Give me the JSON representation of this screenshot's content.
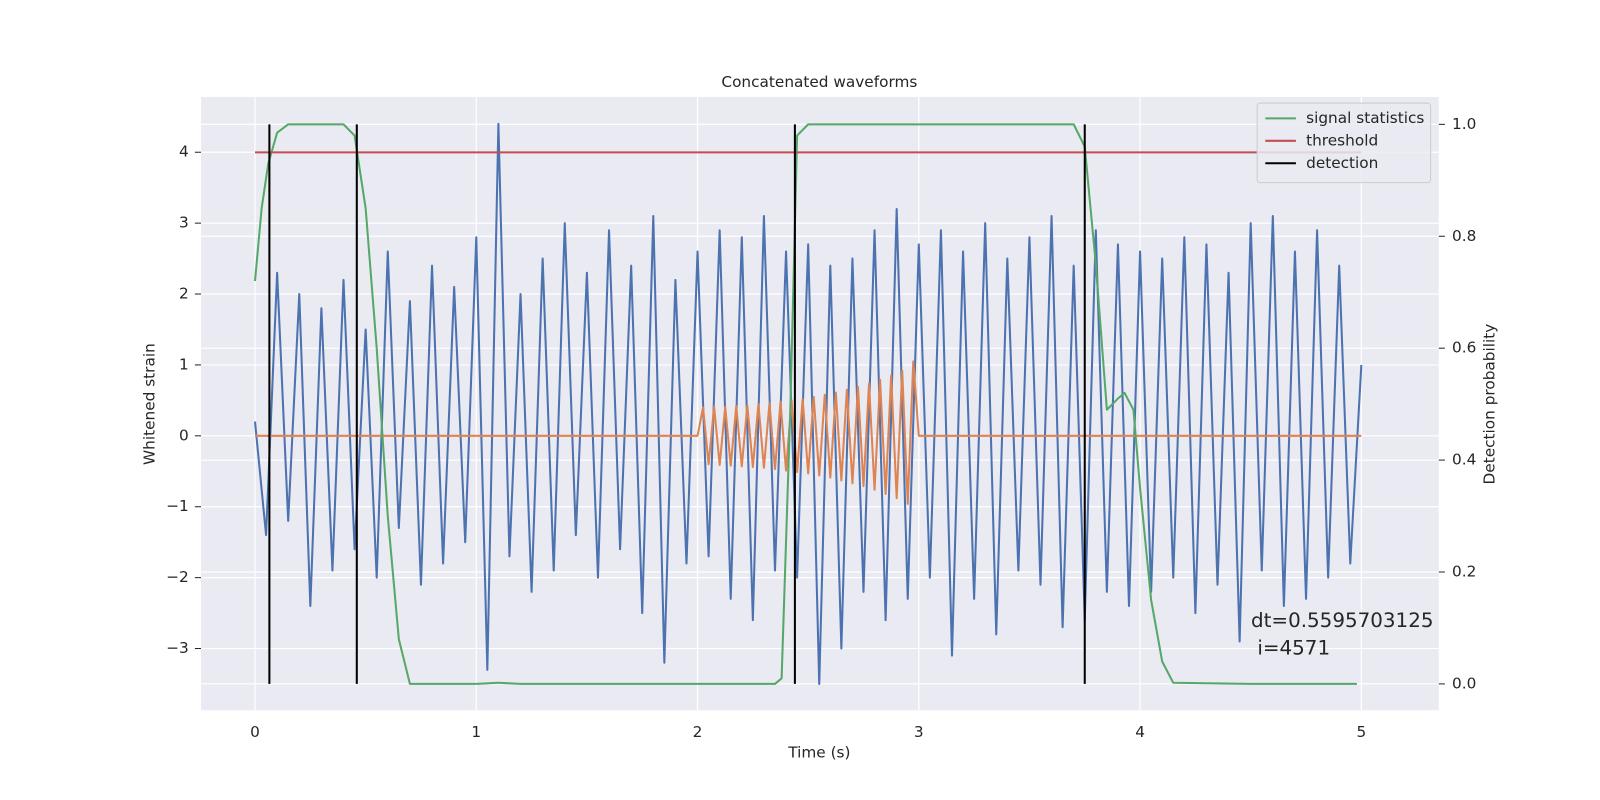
{
  "chart_data": {
    "type": "line",
    "title": "Concatenated waveforms",
    "xlabel": "Time (s)",
    "ylabel": "Whitened strain",
    "y2label": "Detection probability",
    "xlim": [
      -0.244,
      5.35
    ],
    "ylim": [
      -3.87,
      4.78
    ],
    "y2lim": [
      -0.047,
      1.049
    ],
    "xticks": [
      0,
      1,
      2,
      3,
      4,
      5
    ],
    "yticks": [
      {
        "value": -3,
        "label": "−3"
      },
      {
        "value": -2,
        "label": "−2"
      },
      {
        "value": -1,
        "label": "−1"
      },
      0,
      1,
      2,
      3,
      4
    ],
    "y2ticks": [
      {
        "value": 0,
        "label": "0.0"
      },
      0.2,
      0.4,
      0.6,
      0.8,
      {
        "value": 1,
        "label": "1.0"
      }
    ],
    "grid": true,
    "legend": "upper right",
    "series": [
      {
        "color": "#4c72b0",
        "x": [
          0,
          0.05,
          0.1,
          0.15,
          0.2,
          0.25,
          0.3,
          0.35,
          0.4,
          0.45,
          0.5,
          0.55,
          0.6,
          0.65,
          0.7,
          0.75,
          0.8,
          0.85,
          0.9,
          0.95,
          1,
          1.05,
          1.1,
          1.15,
          1.2,
          1.25,
          1.3,
          1.35,
          1.4,
          1.45,
          1.5,
          1.55,
          1.6,
          1.65,
          1.7,
          1.75,
          1.8,
          1.85,
          1.9,
          1.95,
          2,
          2.05,
          2.1,
          2.15,
          2.2,
          2.25,
          2.3,
          2.35,
          2.4,
          2.45,
          2.5,
          2.55,
          2.6,
          2.65,
          2.7,
          2.75,
          2.8,
          2.85,
          2.9,
          2.95,
          3,
          3.05,
          3.1,
          3.15,
          3.2,
          3.25,
          3.3,
          3.35,
          3.4,
          3.45,
          3.5,
          3.55,
          3.6,
          3.65,
          3.7,
          3.75,
          3.8,
          3.85,
          3.9,
          3.95,
          4,
          4.05,
          4.1,
          4.15,
          4.2,
          4.25,
          4.3,
          4.35,
          4.4,
          4.45,
          4.5,
          4.55,
          4.6,
          4.65,
          4.7,
          4.75,
          4.8,
          4.85,
          4.9,
          4.95,
          5
        ],
        "values": [
          0.2,
          -1.4,
          2.3,
          -1.2,
          2.0,
          -2.4,
          1.8,
          -1.9,
          2.2,
          -1.6,
          1.5,
          -2.0,
          2.6,
          -1.3,
          1.9,
          -2.1,
          2.4,
          -1.8,
          2.1,
          -1.5,
          2.8,
          -3.3,
          4.4,
          -1.7,
          2.0,
          -2.2,
          2.5,
          -1.9,
          3.0,
          -1.4,
          2.3,
          -2.0,
          2.9,
          -1.6,
          2.4,
          -2.5,
          3.1,
          -3.2,
          2.2,
          -1.8,
          2.6,
          -1.7,
          2.9,
          -2.3,
          2.8,
          -2.6,
          3.1,
          -1.9,
          2.6,
          -2.0,
          2.7,
          -3.5,
          2.4,
          -3.0,
          2.5,
          -2.2,
          2.9,
          -2.6,
          3.2,
          -2.3,
          2.7,
          -2.0,
          2.9,
          -3.1,
          2.6,
          -2.3,
          3.0,
          -2.8,
          2.5,
          -1.9,
          2.8,
          -2.1,
          3.1,
          -2.7,
          2.4,
          -2.6,
          2.9,
          -2.2,
          2.7,
          -2.4,
          2.6,
          -2.2,
          2.5,
          -2.0,
          2.8,
          -2.5,
          2.7,
          -2.1,
          2.3,
          -2.9,
          3.0,
          -1.9,
          3.1,
          -2.4,
          2.6,
          -2.3,
          2.9,
          -2.0,
          2.4,
          -1.8,
          1.0
        ]
      },
      {
        "color": "#dd8452",
        "x": [
          0,
          2,
          2.025,
          2.05,
          2.075,
          2.1,
          2.125,
          2.15,
          2.175,
          2.2,
          2.225,
          2.25,
          2.275,
          2.3,
          2.325,
          2.35,
          2.375,
          2.4,
          2.425,
          2.45,
          2.475,
          2.5,
          2.525,
          2.55,
          2.575,
          2.6,
          2.625,
          2.65,
          2.675,
          2.7,
          2.725,
          2.75,
          2.775,
          2.8,
          2.825,
          2.85,
          2.875,
          2.9,
          2.925,
          2.95,
          2.975,
          3,
          5
        ],
        "values": [
          0,
          0,
          0.4,
          -0.4,
          0.41,
          -0.41,
          0.41,
          -0.42,
          0.42,
          -0.43,
          0.43,
          -0.44,
          0.45,
          -0.45,
          0.46,
          -0.47,
          0.48,
          -0.49,
          0.5,
          -0.51,
          0.52,
          -0.53,
          0.55,
          -0.56,
          0.58,
          -0.59,
          0.61,
          -0.63,
          0.65,
          -0.67,
          0.69,
          -0.71,
          0.74,
          -0.76,
          0.79,
          -0.82,
          0.85,
          -0.88,
          0.92,
          -0.96,
          1.05,
          0,
          0
        ]
      },
      {
        "name": "signal statistics",
        "color": "#55a868",
        "axis": "y2",
        "x": [
          0,
          0.03,
          0.06,
          0.1,
          0.15,
          0.4,
          0.45,
          0.5,
          0.55,
          0.6,
          0.65,
          0.7,
          1.0,
          1.1,
          1.2,
          2.35,
          2.38,
          2.42,
          2.45,
          2.5,
          3.7,
          3.75,
          3.8,
          3.85,
          3.9,
          3.93,
          3.97,
          4.0,
          4.05,
          4.1,
          4.15,
          4.5,
          4.98
        ],
        "values": [
          0.72,
          0.85,
          0.93,
          0.985,
          1.0,
          1.0,
          0.98,
          0.85,
          0.6,
          0.3,
          0.08,
          0.0,
          0.0,
          0.002,
          0.0,
          0.0,
          0.01,
          0.5,
          0.98,
          1.0,
          1.0,
          0.96,
          0.75,
          0.49,
          0.51,
          0.52,
          0.49,
          0.35,
          0.15,
          0.04,
          0.002,
          0.0,
          0.0
        ]
      },
      {
        "name": "threshold",
        "color": "#c44e52",
        "axis": "y2",
        "x": [
          0,
          5
        ],
        "values": [
          0.95,
          0.95
        ]
      },
      {
        "name": "detection",
        "color": "#000000",
        "axis": "y2",
        "kind": "vlines",
        "x": [
          0.065,
          0.46,
          2.44,
          3.75
        ],
        "values": [
          1,
          1,
          1,
          1
        ]
      }
    ],
    "annotations": [
      "dt=0.5595703125",
      " i=4571"
    ]
  }
}
